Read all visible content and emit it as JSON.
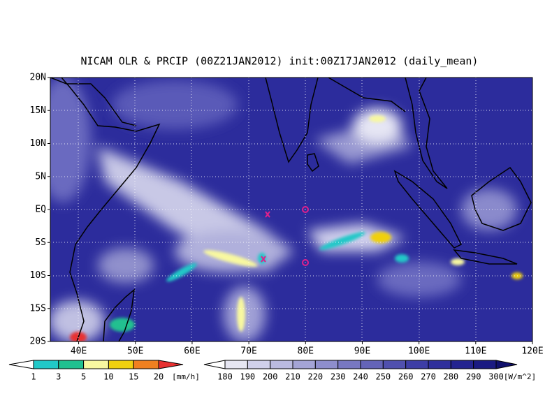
{
  "title": "NICAM OLR & PRCIP (00Z21JAN2012) init:00Z17JAN2012 (daily_mean)",
  "map": {
    "lat_labels": [
      "20N",
      "15N",
      "10N",
      "5N",
      "EQ",
      "5S",
      "10S",
      "15S",
      "20S"
    ],
    "lon_labels": [
      "40E",
      "50E",
      "60E",
      "70E",
      "80E",
      "90E",
      "100E",
      "110E",
      "120E"
    ]
  },
  "precip_colorbar": {
    "labels": [
      1,
      3,
      5,
      10,
      15,
      20
    ],
    "unit": "[mm/h]",
    "colors": [
      "#ffffff",
      "#22c8c8",
      "#20c090",
      "#f8f8a0",
      "#f0d010",
      "#f08020",
      "#e83030"
    ]
  },
  "olr_colorbar": {
    "labels": [
      180,
      190,
      200,
      210,
      220,
      230,
      240,
      250,
      260,
      270,
      280,
      290,
      300
    ],
    "unit": "[W/m^2]",
    "colors": [
      "#ffffff",
      "#e6e6f2",
      "#d0d0ea",
      "#babae0",
      "#a4a4d6",
      "#8e8ecc",
      "#7878c2",
      "#6464b8",
      "#5050ae",
      "#3e3ea6",
      "#30309c",
      "#242490",
      "#1a1a82",
      "#10106c"
    ]
  }
}
